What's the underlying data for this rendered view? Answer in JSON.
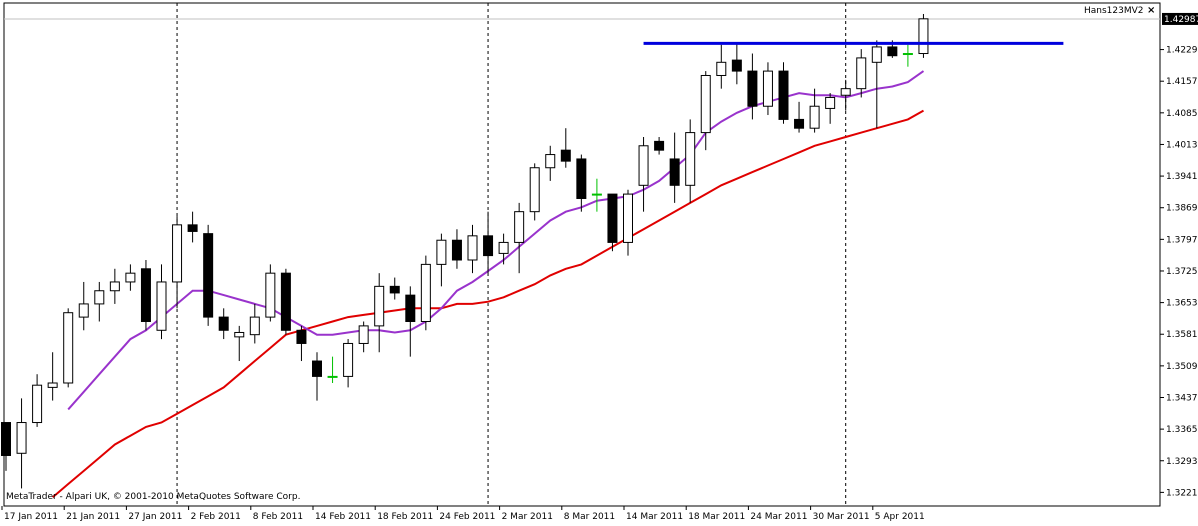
{
  "indicator_label": "Hans123MV2",
  "close_icon": "close-icon",
  "copyright": "MetaTrader - Alpari UK, © 2001-2010 MetaQuotes Software Corp.",
  "current_price": "1.42987",
  "colors": {
    "background": "#ffffff",
    "candle_outline": "#000000",
    "bull_body": "#ffffff",
    "bear_body": "#000000",
    "doji_highlight": "#00c000",
    "ma_fast": "#9933cc",
    "ma_slow": "#e00000",
    "level_line": "#0000dd"
  },
  "chart_data": {
    "type": "candlestick",
    "title": "",
    "ylim": [
      1.319,
      1.4335
    ],
    "y_ticks": [
      "1.42290",
      "1.41570",
      "1.40850",
      "1.40130",
      "1.39410",
      "1.38690",
      "1.37970",
      "1.37250",
      "1.36530",
      "1.35810",
      "1.35090",
      "1.34370",
      "1.33650",
      "1.32930",
      "1.32210"
    ],
    "x_ticks": [
      "17 Jan 2011",
      "21 Jan 2011",
      "27 Jan 2011",
      "2 Feb 2011",
      "8 Feb 2011",
      "14 Feb 2011",
      "18 Feb 2011",
      "24 Feb 2011",
      "2 Mar 2011",
      "8 Mar 2011",
      "14 Mar 2011",
      "18 Mar 2011",
      "24 Mar 2011",
      "30 Mar 2011",
      "5 Apr 2011"
    ],
    "x_tick_bar_index": [
      0,
      4,
      8,
      12,
      16,
      20,
      24,
      28,
      32,
      36,
      40,
      44,
      48,
      52,
      56
    ],
    "week_separator_bar_index": [
      11,
      31,
      54
    ],
    "horizontal_level": {
      "value": 1.4243,
      "from_bar": 41,
      "to_bar": 68
    },
    "candles": [
      {
        "o": 1.338,
        "h": 1.338,
        "l": 1.327,
        "c": 1.3305
      },
      {
        "o": 1.331,
        "h": 1.3435,
        "l": 1.323,
        "c": 1.338
      },
      {
        "o": 1.338,
        "h": 1.349,
        "l": 1.337,
        "c": 1.3465
      },
      {
        "o": 1.346,
        "h": 1.354,
        "l": 1.343,
        "c": 1.347
      },
      {
        "o": 1.347,
        "h": 1.364,
        "l": 1.346,
        "c": 1.363
      },
      {
        "o": 1.362,
        "h": 1.37,
        "l": 1.359,
        "c": 1.365
      },
      {
        "o": 1.365,
        "h": 1.37,
        "l": 1.361,
        "c": 1.368
      },
      {
        "o": 1.368,
        "h": 1.373,
        "l": 1.365,
        "c": 1.37
      },
      {
        "o": 1.37,
        "h": 1.374,
        "l": 1.368,
        "c": 1.372
      },
      {
        "o": 1.373,
        "h": 1.375,
        "l": 1.359,
        "c": 1.361
      },
      {
        "o": 1.359,
        "h": 1.374,
        "l": 1.357,
        "c": 1.37
      },
      {
        "o": 1.37,
        "h": 1.385,
        "l": 1.364,
        "c": 1.383
      },
      {
        "o": 1.383,
        "h": 1.386,
        "l": 1.379,
        "c": 1.3815
      },
      {
        "o": 1.381,
        "h": 1.383,
        "l": 1.36,
        "c": 1.362
      },
      {
        "o": 1.362,
        "h": 1.364,
        "l": 1.357,
        "c": 1.359
      },
      {
        "o": 1.3575,
        "h": 1.36,
        "l": 1.352,
        "c": 1.3585
      },
      {
        "o": 1.358,
        "h": 1.365,
        "l": 1.356,
        "c": 1.362
      },
      {
        "o": 1.362,
        "h": 1.374,
        "l": 1.361,
        "c": 1.372
      },
      {
        "o": 1.372,
        "h": 1.373,
        "l": 1.358,
        "c": 1.359
      },
      {
        "o": 1.359,
        "h": 1.36,
        "l": 1.352,
        "c": 1.356
      },
      {
        "o": 1.352,
        "h": 1.354,
        "l": 1.343,
        "c": 1.3485
      },
      {
        "o": 1.3485,
        "h": 1.353,
        "l": 1.347,
        "c": 1.3485
      },
      {
        "o": 1.3485,
        "h": 1.357,
        "l": 1.346,
        "c": 1.356
      },
      {
        "o": 1.356,
        "h": 1.361,
        "l": 1.354,
        "c": 1.36
      },
      {
        "o": 1.36,
        "h": 1.372,
        "l": 1.354,
        "c": 1.369
      },
      {
        "o": 1.369,
        "h": 1.371,
        "l": 1.366,
        "c": 1.3675
      },
      {
        "o": 1.367,
        "h": 1.369,
        "l": 1.353,
        "c": 1.361
      },
      {
        "o": 1.361,
        "h": 1.376,
        "l": 1.359,
        "c": 1.374
      },
      {
        "o": 1.374,
        "h": 1.381,
        "l": 1.369,
        "c": 1.3795
      },
      {
        "o": 1.3795,
        "h": 1.382,
        "l": 1.373,
        "c": 1.375
      },
      {
        "o": 1.375,
        "h": 1.383,
        "l": 1.372,
        "c": 1.3805
      },
      {
        "o": 1.3805,
        "h": 1.386,
        "l": 1.372,
        "c": 1.376
      },
      {
        "o": 1.3765,
        "h": 1.381,
        "l": 1.374,
        "c": 1.379
      },
      {
        "o": 1.379,
        "h": 1.388,
        "l": 1.372,
        "c": 1.386
      },
      {
        "o": 1.386,
        "h": 1.397,
        "l": 1.384,
        "c": 1.396
      },
      {
        "o": 1.396,
        "h": 1.401,
        "l": 1.393,
        "c": 1.399
      },
      {
        "o": 1.4,
        "h": 1.405,
        "l": 1.396,
        "c": 1.3975
      },
      {
        "o": 1.398,
        "h": 1.399,
        "l": 1.386,
        "c": 1.389
      },
      {
        "o": 1.39,
        "h": 1.3935,
        "l": 1.386,
        "c": 1.39
      },
      {
        "o": 1.39,
        "h": 1.39,
        "l": 1.377,
        "c": 1.379
      },
      {
        "o": 1.379,
        "h": 1.391,
        "l": 1.376,
        "c": 1.39
      },
      {
        "o": 1.392,
        "h": 1.403,
        "l": 1.386,
        "c": 1.401
      },
      {
        "o": 1.402,
        "h": 1.403,
        "l": 1.399,
        "c": 1.4
      },
      {
        "o": 1.398,
        "h": 1.404,
        "l": 1.388,
        "c": 1.392
      },
      {
        "o": 1.392,
        "h": 1.407,
        "l": 1.388,
        "c": 1.404
      },
      {
        "o": 1.404,
        "h": 1.418,
        "l": 1.4,
        "c": 1.417
      },
      {
        "o": 1.417,
        "h": 1.424,
        "l": 1.414,
        "c": 1.42
      },
      {
        "o": 1.4205,
        "h": 1.4245,
        "l": 1.415,
        "c": 1.418
      },
      {
        "o": 1.418,
        "h": 1.422,
        "l": 1.407,
        "c": 1.41
      },
      {
        "o": 1.41,
        "h": 1.42,
        "l": 1.408,
        "c": 1.418
      },
      {
        "o": 1.418,
        "h": 1.42,
        "l": 1.406,
        "c": 1.407
      },
      {
        "o": 1.407,
        "h": 1.411,
        "l": 1.404,
        "c": 1.405
      },
      {
        "o": 1.405,
        "h": 1.414,
        "l": 1.404,
        "c": 1.41
      },
      {
        "o": 1.4095,
        "h": 1.413,
        "l": 1.406,
        "c": 1.412
      },
      {
        "o": 1.4125,
        "h": 1.416,
        "l": 1.409,
        "c": 1.414
      },
      {
        "o": 1.414,
        "h": 1.423,
        "l": 1.412,
        "c": 1.421
      },
      {
        "o": 1.42,
        "h": 1.425,
        "l": 1.405,
        "c": 1.4235
      },
      {
        "o": 1.4235,
        "h": 1.425,
        "l": 1.421,
        "c": 1.4215
      },
      {
        "o": 1.422,
        "h": 1.424,
        "l": 1.419,
        "c": 1.422
      },
      {
        "o": 1.422,
        "h": 1.431,
        "l": 1.421,
        "c": 1.4299
      }
    ],
    "ma_fast": [
      null,
      null,
      null,
      null,
      1.341,
      1.345,
      1.349,
      1.353,
      1.357,
      1.359,
      1.362,
      1.365,
      1.368,
      1.368,
      1.367,
      1.366,
      1.365,
      1.364,
      1.362,
      1.36,
      1.358,
      1.358,
      1.3585,
      1.359,
      1.359,
      1.3585,
      1.359,
      1.361,
      1.364,
      1.368,
      1.37,
      1.3725,
      1.375,
      1.378,
      1.381,
      1.384,
      1.386,
      1.387,
      1.3885,
      1.389,
      1.3895,
      1.391,
      1.393,
      1.396,
      1.399,
      1.404,
      1.4065,
      1.4085,
      1.41,
      1.411,
      1.412,
      1.413,
      1.4125,
      1.4125,
      1.412,
      1.413,
      1.414,
      1.4145,
      1.4155,
      1.418
    ],
    "ma_slow": [
      null,
      null,
      null,
      1.321,
      1.324,
      1.327,
      1.33,
      1.333,
      1.335,
      1.337,
      1.338,
      1.34,
      1.342,
      1.344,
      1.346,
      1.349,
      1.352,
      1.355,
      1.358,
      1.359,
      1.36,
      1.361,
      1.362,
      1.3625,
      1.363,
      1.3635,
      1.364,
      1.364,
      1.364,
      1.365,
      1.365,
      1.3655,
      1.3665,
      1.368,
      1.3695,
      1.3715,
      1.373,
      1.374,
      1.376,
      1.378,
      1.38,
      1.382,
      1.384,
      1.386,
      1.388,
      1.39,
      1.392,
      1.3935,
      1.395,
      1.3965,
      1.398,
      1.3995,
      1.401,
      1.402,
      1.403,
      1.404,
      1.405,
      1.406,
      1.407,
      1.409
    ]
  }
}
